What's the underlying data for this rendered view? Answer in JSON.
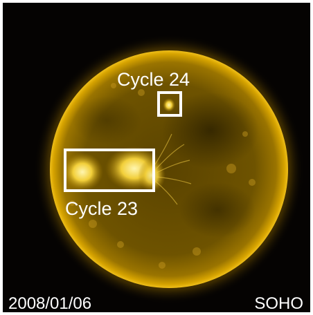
{
  "image": {
    "annotations": {
      "cycle24_label": "Cycle 24",
      "cycle23_label": "Cycle 23"
    },
    "footer": {
      "date": "2008/01/06",
      "source": "SOHO"
    },
    "colors": {
      "background": "#050302",
      "solar_disk": "#6e5300",
      "corona": "#c89400",
      "active_region": "#ffe766",
      "annotation": "#ffffff"
    }
  }
}
